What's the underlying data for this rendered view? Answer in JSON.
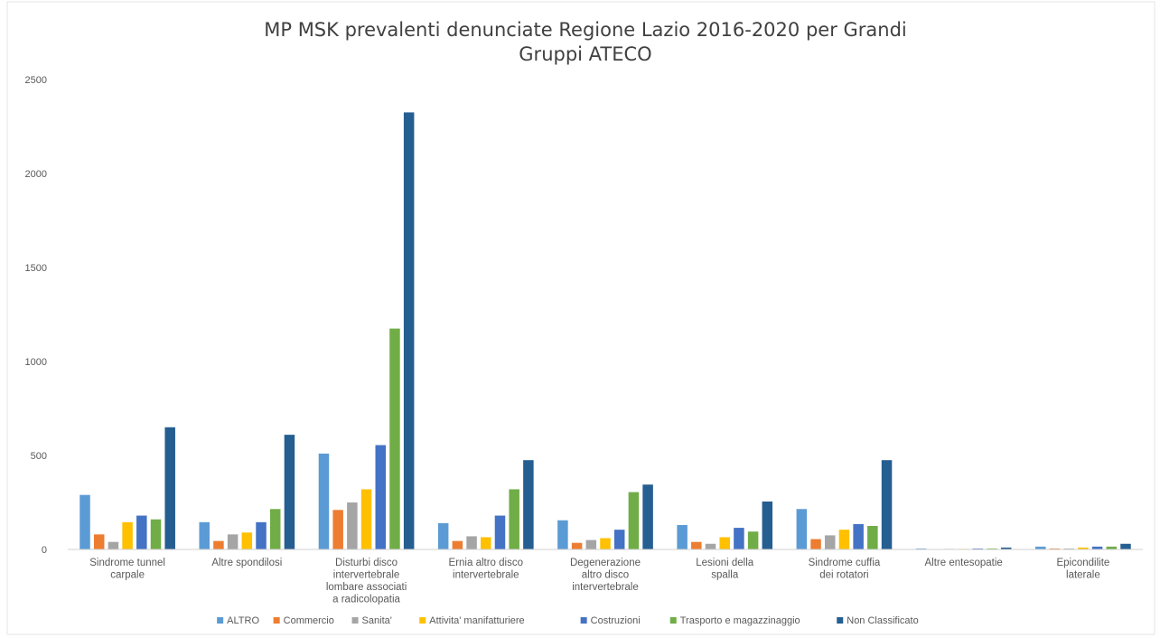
{
  "chart_data": {
    "type": "bar",
    "title_lines": [
      "MP MSK prevalenti denunciate Regione Lazio 2016-2020 per Grandi",
      "Gruppi ATECO"
    ],
    "xlabel": "",
    "ylabel": "",
    "ylim": [
      0,
      2500
    ],
    "yticks": [
      0,
      500,
      1000,
      1500,
      2000,
      2500
    ],
    "grid": false,
    "legend_position": "bottom",
    "categories": [
      [
        "Sindrome tunnel",
        "carpale"
      ],
      [
        "Altre spondilosi"
      ],
      [
        "Disturbi disco",
        "intervertebrale",
        "lombare associati",
        "a radicolopatia"
      ],
      [
        "Ernia altro disco",
        "intervertebrale"
      ],
      [
        "Degenerazione",
        "altro disco",
        "intervertebrale"
      ],
      [
        "Lesioni della",
        "spalla"
      ],
      [
        "Sindrome cuffia",
        "dei rotatori"
      ],
      [
        "Altre entesopatie"
      ],
      [
        "Epicondilite",
        "laterale"
      ]
    ],
    "series": [
      {
        "name": "ALTRO",
        "color": "#5b9bd5",
        "values": [
          290,
          145,
          510,
          140,
          155,
          130,
          215,
          5,
          15
        ]
      },
      {
        "name": "Commercio",
        "color": "#ed7d31",
        "values": [
          80,
          45,
          210,
          45,
          35,
          40,
          55,
          2,
          5
        ]
      },
      {
        "name": "Sanita'",
        "color": "#a5a5a5",
        "values": [
          40,
          80,
          250,
          70,
          50,
          30,
          75,
          3,
          5
        ]
      },
      {
        "name": "Attivita' manifatturiere",
        "color": "#ffc000",
        "values": [
          145,
          90,
          320,
          65,
          60,
          65,
          105,
          3,
          10
        ]
      },
      {
        "name": "Costruzioni",
        "color": "#4472c4",
        "values": [
          180,
          145,
          555,
          180,
          105,
          115,
          135,
          5,
          15
        ]
      },
      {
        "name": "Trasporto e magazzinaggio",
        "color": "#70ad47",
        "values": [
          160,
          215,
          1175,
          320,
          305,
          95,
          125,
          5,
          15
        ]
      },
      {
        "name": "Non Classificato",
        "color": "#255e91",
        "values": [
          650,
          610,
          2325,
          475,
          345,
          255,
          475,
          10,
          30
        ]
      }
    ]
  }
}
